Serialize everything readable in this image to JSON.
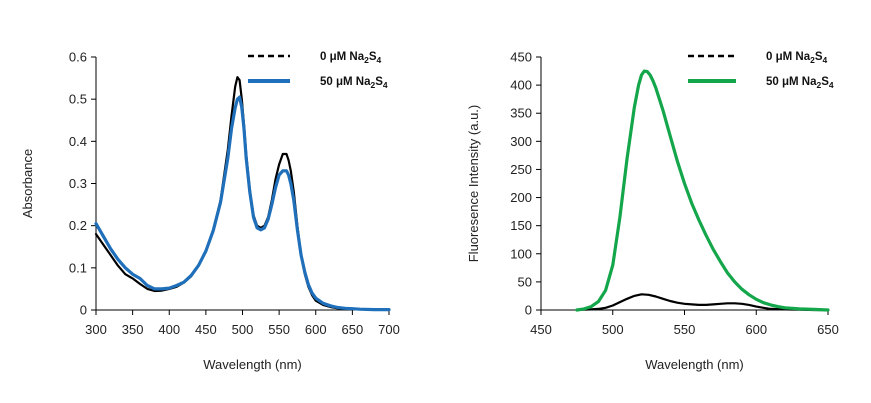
{
  "chart_data": [
    {
      "type": "line",
      "title": "",
      "xlabel": "Wavelength  (nm)",
      "ylabel": "Absorbance",
      "xlim": [
        300,
        700
      ],
      "ylim": [
        0,
        0.6
      ],
      "xticks": [
        300,
        350,
        400,
        450,
        500,
        550,
        600,
        650,
        700
      ],
      "yticks": [
        0,
        0.1,
        0.2,
        0.3,
        0.4,
        0.5,
        0.6
      ],
      "xtick_labels": [
        "300",
        "350",
        "400",
        "450",
        "500",
        "550",
        "600",
        "650",
        "700"
      ],
      "ytick_labels": [
        "0",
        "0.1",
        "0.2",
        "0.3",
        "0.4",
        "0.5",
        "0.6"
      ],
      "grid": false,
      "legend_position": "top-right",
      "series": [
        {
          "name_main": "0 μM Na",
          "name_sub1": "2",
          "name_mid": "S",
          "name_sub2": "4",
          "style": "dashed",
          "color": "#000000",
          "x": [
            300,
            310,
            320,
            330,
            340,
            350,
            360,
            370,
            380,
            390,
            400,
            410,
            420,
            430,
            440,
            450,
            460,
            470,
            480,
            485,
            490,
            493,
            496,
            499,
            502,
            505,
            510,
            515,
            520,
            525,
            530,
            535,
            540,
            545,
            550,
            555,
            560,
            563,
            566,
            570,
            575,
            580,
            585,
            590,
            595,
            600,
            610,
            620,
            630,
            640,
            650,
            660,
            680,
            700
          ],
          "y": [
            0.18,
            0.155,
            0.13,
            0.105,
            0.085,
            0.075,
            0.062,
            0.05,
            0.045,
            0.046,
            0.05,
            0.055,
            0.065,
            0.08,
            0.105,
            0.14,
            0.19,
            0.26,
            0.38,
            0.46,
            0.53,
            0.552,
            0.545,
            0.5,
            0.44,
            0.37,
            0.285,
            0.225,
            0.2,
            0.195,
            0.2,
            0.22,
            0.26,
            0.31,
            0.345,
            0.37,
            0.37,
            0.355,
            0.33,
            0.28,
            0.2,
            0.13,
            0.085,
            0.055,
            0.035,
            0.022,
            0.012,
            0.007,
            0.004,
            0.003,
            0.002,
            0.002,
            0.001,
            0.001
          ]
        },
        {
          "name_main": "50 μM Na",
          "name_sub1": "2",
          "name_mid": "S",
          "name_sub2": "4",
          "style": "solid",
          "color": "#1f6fba",
          "x": [
            300,
            310,
            320,
            330,
            340,
            350,
            360,
            370,
            380,
            390,
            400,
            410,
            420,
            430,
            440,
            450,
            460,
            470,
            480,
            485,
            490,
            493,
            496,
            499,
            502,
            505,
            510,
            515,
            520,
            525,
            530,
            535,
            540,
            545,
            550,
            555,
            560,
            563,
            566,
            570,
            575,
            580,
            585,
            590,
            595,
            600,
            610,
            620,
            630,
            640,
            650,
            660,
            680,
            700
          ],
          "y": [
            0.205,
            0.175,
            0.145,
            0.12,
            0.1,
            0.085,
            0.075,
            0.058,
            0.05,
            0.05,
            0.052,
            0.058,
            0.066,
            0.082,
            0.106,
            0.14,
            0.188,
            0.255,
            0.36,
            0.43,
            0.48,
            0.5,
            0.505,
            0.48,
            0.43,
            0.36,
            0.28,
            0.22,
            0.195,
            0.19,
            0.195,
            0.215,
            0.25,
            0.29,
            0.32,
            0.33,
            0.33,
            0.32,
            0.3,
            0.26,
            0.19,
            0.13,
            0.09,
            0.06,
            0.04,
            0.028,
            0.016,
            0.01,
            0.006,
            0.004,
            0.003,
            0.002,
            0.001,
            0.001
          ]
        }
      ]
    },
    {
      "type": "line",
      "title": "",
      "xlabel": "Wavelength  (nm)",
      "ylabel": "Fluoresence  Intensity  (a.u.)",
      "xlim": [
        450,
        650
      ],
      "ylim": [
        0,
        450
      ],
      "xticks": [
        450,
        500,
        550,
        600,
        650
      ],
      "yticks": [
        0,
        50,
        100,
        150,
        200,
        250,
        300,
        350,
        400,
        450
      ],
      "xtick_labels": [
        "450",
        "500",
        "550",
        "600",
        "650"
      ],
      "ytick_labels": [
        "0",
        "50",
        "100",
        "150",
        "200",
        "250",
        "300",
        "350",
        "400",
        "450"
      ],
      "grid": false,
      "legend_position": "top-right",
      "series": [
        {
          "name_main": "0 μM Na",
          "name_sub1": "2",
          "name_mid": "S",
          "name_sub2": "4",
          "style": "dashed",
          "color": "#000000",
          "x": [
            475,
            480,
            485,
            490,
            495,
            500,
            505,
            510,
            515,
            520,
            525,
            530,
            535,
            540,
            545,
            550,
            555,
            560,
            565,
            570,
            575,
            580,
            585,
            590,
            595,
            600,
            605,
            610,
            620,
            630,
            640,
            650
          ],
          "y": [
            0,
            0.5,
            1,
            2,
            4,
            8,
            14,
            20,
            25,
            28,
            27,
            24,
            20,
            16,
            13,
            11,
            10,
            9,
            9,
            10,
            11,
            12,
            12,
            11,
            9,
            6,
            4,
            2,
            1,
            0.5,
            0,
            0
          ]
        },
        {
          "name_main": "50 μM Na",
          "name_sub1": "2",
          "name_mid": "S",
          "name_sub2": "4",
          "style": "solid",
          "color": "#13a64a",
          "x": [
            475,
            480,
            485,
            490,
            495,
            500,
            505,
            510,
            515,
            518,
            520,
            522,
            524,
            526,
            528,
            530,
            535,
            540,
            545,
            550,
            555,
            560,
            565,
            570,
            575,
            580,
            585,
            590,
            595,
            600,
            605,
            610,
            615,
            620,
            625,
            630,
            640,
            650
          ],
          "y": [
            0,
            2,
            6,
            15,
            35,
            80,
            165,
            270,
            360,
            400,
            418,
            425,
            424,
            418,
            408,
            395,
            355,
            310,
            265,
            225,
            190,
            160,
            133,
            108,
            86,
            66,
            50,
            37,
            27,
            19,
            13,
            9,
            6,
            4,
            3,
            2,
            1,
            0
          ]
        }
      ]
    }
  ]
}
